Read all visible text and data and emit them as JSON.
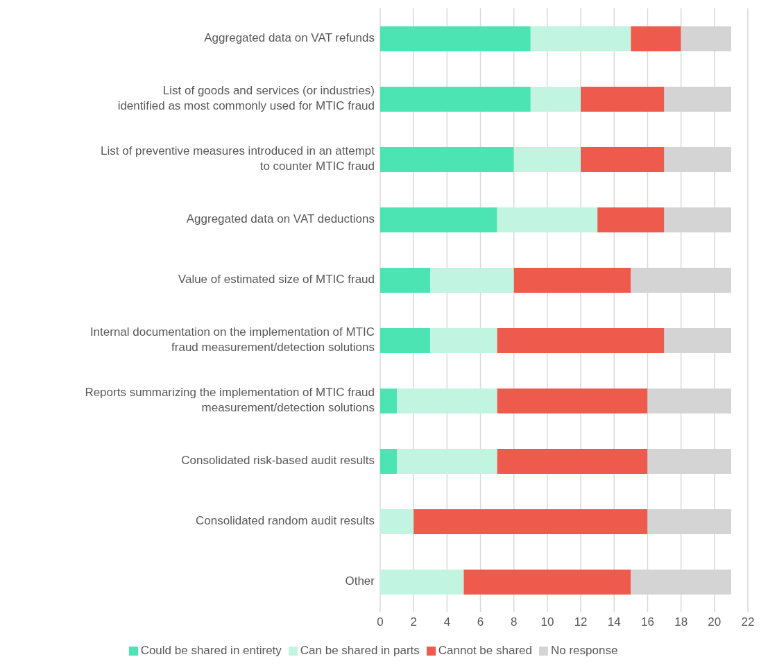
{
  "chart_data": {
    "type": "bar",
    "orientation": "horizontal",
    "stacked": true,
    "categories": [
      "Aggregated data on VAT refunds",
      "List of goods and services (or industries) identified as most commonly used for MTIC fraud",
      "List of preventive measures introduced in an attempt to counter MTIC fraud",
      "Aggregated data on VAT deductions",
      "Value of estimated size of MTIC fraud",
      "Internal documentation on the implementation of MTIC fraud measurement/detection solutions",
      "Reports summarizing the implementation of MTIC fraud measurement/detection solutions",
      "Consolidated risk-based audit results",
      "Consolidated random audit results",
      "Other"
    ],
    "series": [
      {
        "name": "Could be shared in entirety",
        "color": "#4de4b4",
        "values": [
          9,
          9,
          8,
          7,
          3,
          3,
          1,
          1,
          0,
          0
        ]
      },
      {
        "name": "Can be shared in parts",
        "color": "#c2f4e2",
        "values": [
          6,
          3,
          4,
          6,
          5,
          4,
          6,
          6,
          2,
          5
        ]
      },
      {
        "name": "Cannot be shared",
        "color": "#ee5a4c",
        "values": [
          3,
          5,
          5,
          4,
          7,
          10,
          9,
          9,
          14,
          10
        ]
      },
      {
        "name": "No response",
        "color": "#d4d4d4",
        "values": [
          3,
          4,
          4,
          4,
          6,
          4,
          5,
          5,
          5,
          6
        ]
      }
    ],
    "xlim": [
      0,
      22
    ],
    "xticks": [
      0,
      2,
      4,
      6,
      8,
      10,
      12,
      14,
      16,
      18,
      20,
      22
    ],
    "grid": "x",
    "legend": "bottom"
  }
}
